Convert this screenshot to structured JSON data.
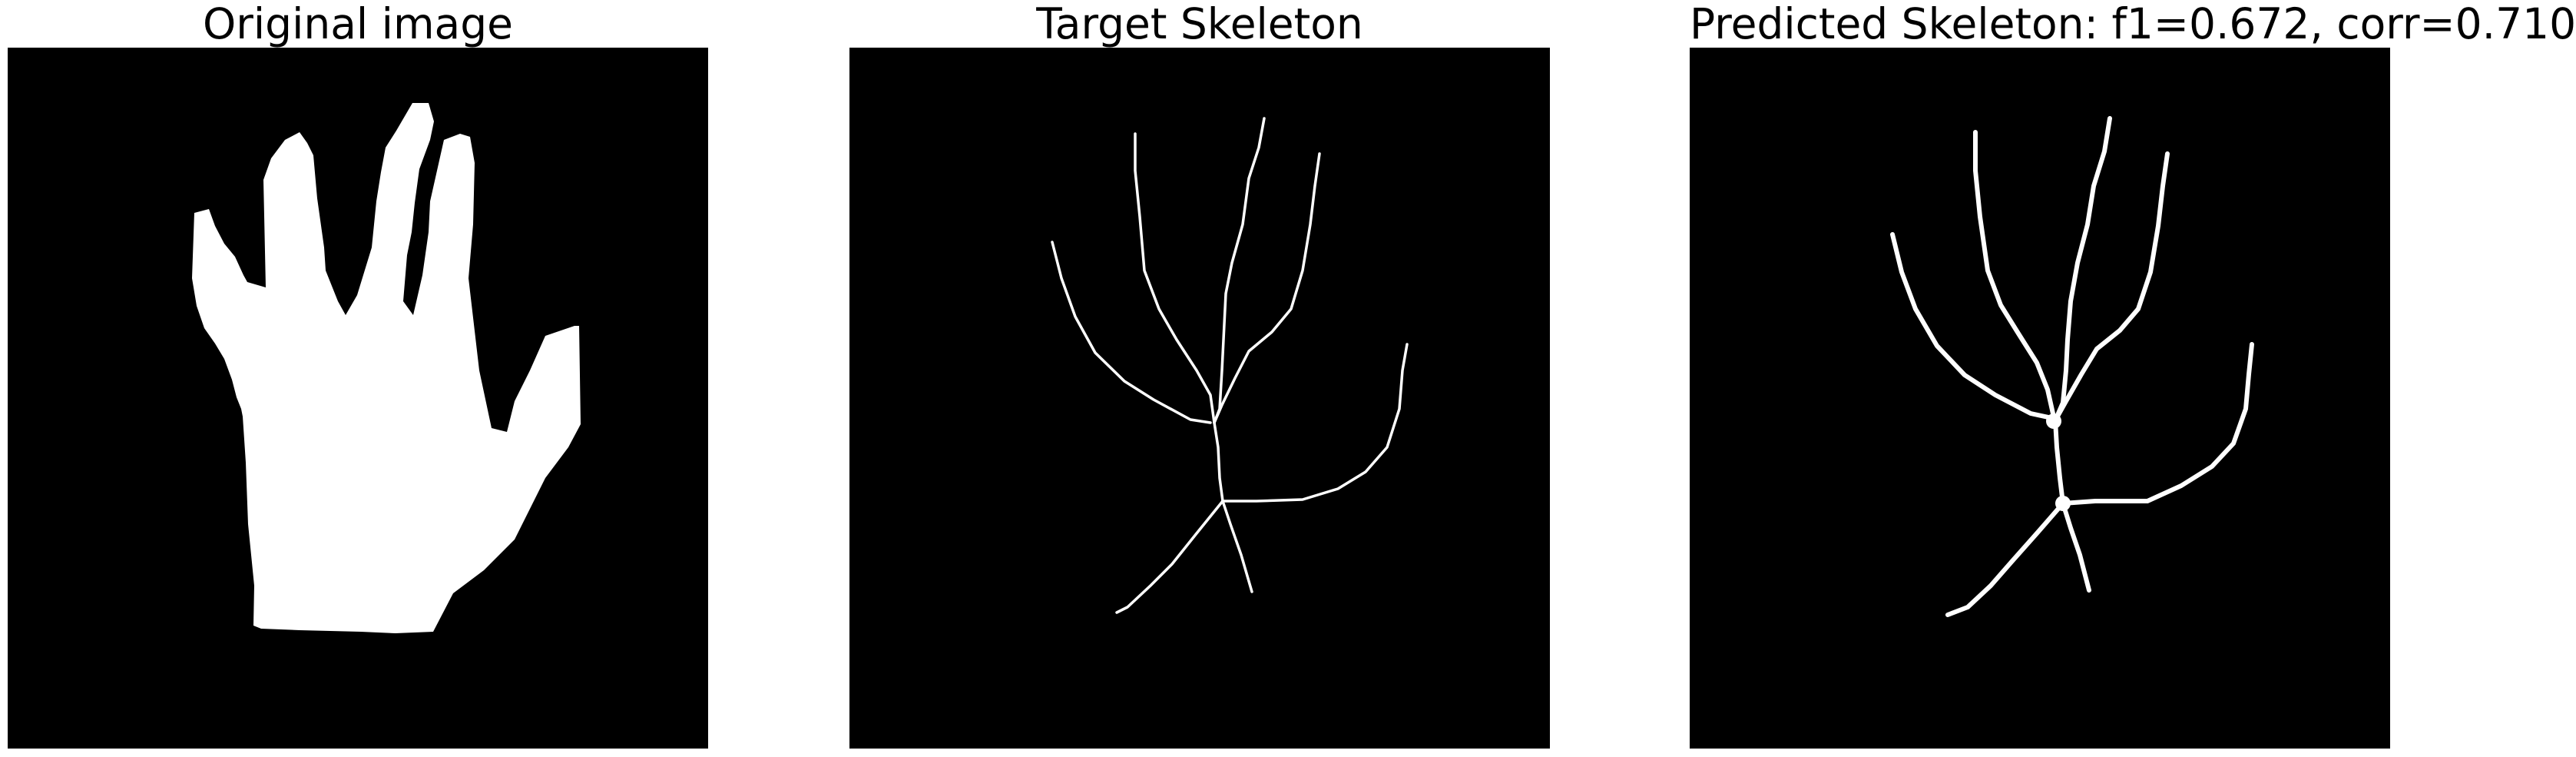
{
  "panels": {
    "original": {
      "title": "Original image",
      "icon": "hand-silhouette"
    },
    "target": {
      "title": "Target Skeleton",
      "icon": "hand-skeleton"
    },
    "predicted": {
      "title": "Predicted Skeleton: f1=0.672, corr=0.710",
      "icon": "predicted-hand-skeleton"
    }
  },
  "colors": {
    "background": "#000000",
    "foreground": "#ffffff",
    "page": "#ffffff"
  }
}
